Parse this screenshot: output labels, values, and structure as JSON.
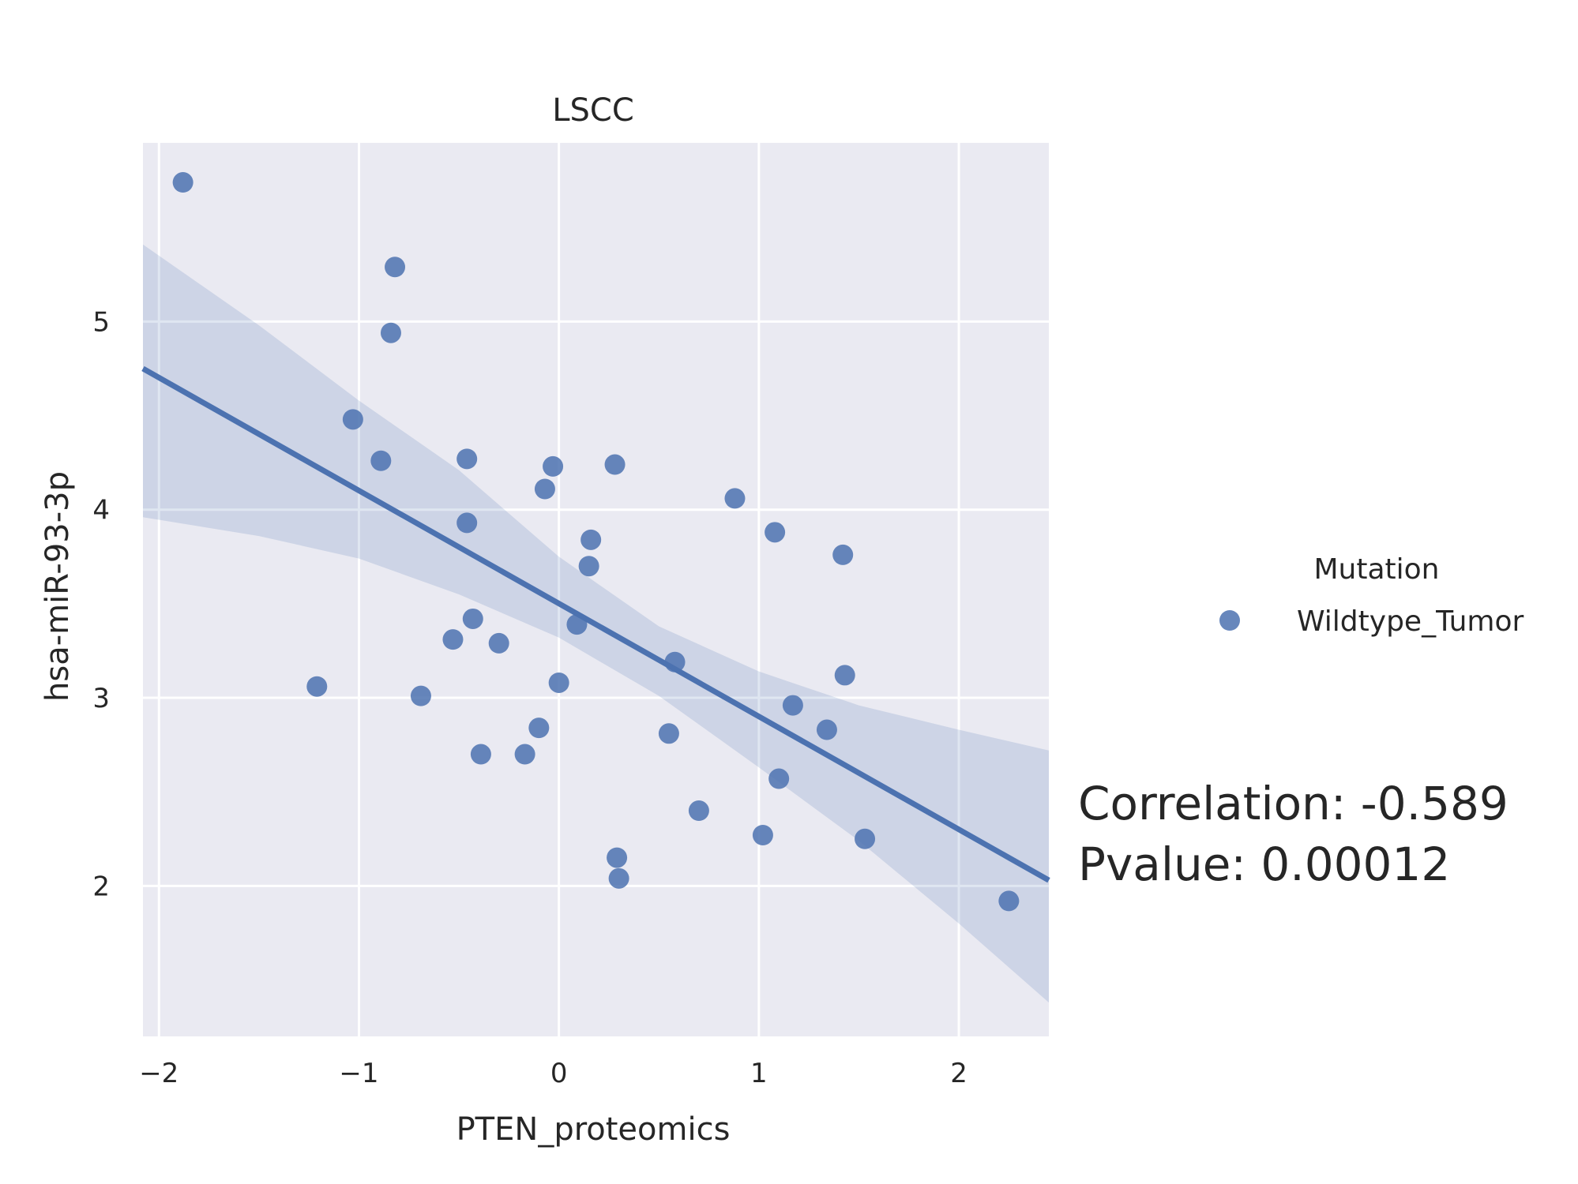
{
  "chart_data": {
    "type": "scatter",
    "title": "LSCC",
    "xlabel": "PTEN_proteomics",
    "ylabel": "hsa-miR-93-3p",
    "xlim": [
      -2.08,
      2.45
    ],
    "ylim": [
      1.2,
      5.95
    ],
    "x_ticks": [
      -2,
      -1,
      0,
      1,
      2
    ],
    "x_tick_labels": [
      "−2",
      "−1",
      "0",
      "1",
      "2"
    ],
    "y_ticks": [
      2,
      3,
      4,
      5
    ],
    "y_tick_labels": [
      "2",
      "3",
      "4",
      "5"
    ],
    "grid": true,
    "legend": {
      "title": "Mutation",
      "placement": "right",
      "entries": [
        {
          "label": "Wildtype_Tumor",
          "color": "#4c72b0"
        }
      ]
    },
    "series": [
      {
        "name": "Wildtype_Tumor",
        "color": "#4c72b0",
        "points": [
          {
            "x": -1.88,
            "y": 5.74
          },
          {
            "x": -0.82,
            "y": 5.29
          },
          {
            "x": -0.84,
            "y": 4.94
          },
          {
            "x": -1.03,
            "y": 4.48
          },
          {
            "x": -0.89,
            "y": 4.26
          },
          {
            "x": -0.46,
            "y": 4.27
          },
          {
            "x": -0.46,
            "y": 3.93
          },
          {
            "x": -0.03,
            "y": 4.23
          },
          {
            "x": -0.07,
            "y": 4.11
          },
          {
            "x": 0.28,
            "y": 4.24
          },
          {
            "x": 0.16,
            "y": 3.84
          },
          {
            "x": 0.15,
            "y": 3.7
          },
          {
            "x": 0.88,
            "y": 4.06
          },
          {
            "x": 1.08,
            "y": 3.88
          },
          {
            "x": 1.42,
            "y": 3.76
          },
          {
            "x": -0.43,
            "y": 3.42
          },
          {
            "x": -0.53,
            "y": 3.31
          },
          {
            "x": -0.3,
            "y": 3.29
          },
          {
            "x": 0.09,
            "y": 3.39
          },
          {
            "x": 0.58,
            "y": 3.19
          },
          {
            "x": 1.43,
            "y": 3.12
          },
          {
            "x": -1.21,
            "y": 3.06
          },
          {
            "x": -0.69,
            "y": 3.01
          },
          {
            "x": 0.0,
            "y": 3.08
          },
          {
            "x": 1.17,
            "y": 2.96
          },
          {
            "x": -0.1,
            "y": 2.84
          },
          {
            "x": 0.55,
            "y": 2.81
          },
          {
            "x": 1.34,
            "y": 2.83
          },
          {
            "x": -0.39,
            "y": 2.7
          },
          {
            "x": -0.17,
            "y": 2.7
          },
          {
            "x": 1.1,
            "y": 2.57
          },
          {
            "x": 0.7,
            "y": 2.4
          },
          {
            "x": 1.02,
            "y": 2.27
          },
          {
            "x": 1.53,
            "y": 2.25
          },
          {
            "x": 0.29,
            "y": 2.15
          },
          {
            "x": 0.3,
            "y": 2.04
          },
          {
            "x": 2.25,
            "y": 1.92
          }
        ]
      }
    ],
    "regression": {
      "color": "#4c72b0",
      "line": [
        {
          "x": -2.08,
          "y": 4.75
        },
        {
          "x": 2.45,
          "y": 2.03
        }
      ],
      "ci_upper": [
        {
          "x": -2.08,
          "y": 5.41
        },
        {
          "x": -1.5,
          "y": 4.98
        },
        {
          "x": -1.0,
          "y": 4.58
        },
        {
          "x": -0.5,
          "y": 4.21
        },
        {
          "x": 0.0,
          "y": 3.75
        },
        {
          "x": 0.5,
          "y": 3.38
        },
        {
          "x": 1.0,
          "y": 3.14
        },
        {
          "x": 1.5,
          "y": 2.96
        },
        {
          "x": 2.0,
          "y": 2.83
        },
        {
          "x": 2.45,
          "y": 2.72
        }
      ],
      "ci_lower": [
        {
          "x": -2.08,
          "y": 3.96
        },
        {
          "x": -1.5,
          "y": 3.86
        },
        {
          "x": -1.0,
          "y": 3.74
        },
        {
          "x": -0.5,
          "y": 3.55
        },
        {
          "x": 0.0,
          "y": 3.32
        },
        {
          "x": 0.5,
          "y": 3.01
        },
        {
          "x": 1.0,
          "y": 2.63
        },
        {
          "x": 1.5,
          "y": 2.24
        },
        {
          "x": 2.0,
          "y": 1.8
        },
        {
          "x": 2.45,
          "y": 1.38
        }
      ]
    },
    "annotations": [
      "Correlation: -0.589",
      "Pvalue: 0.00012"
    ]
  }
}
